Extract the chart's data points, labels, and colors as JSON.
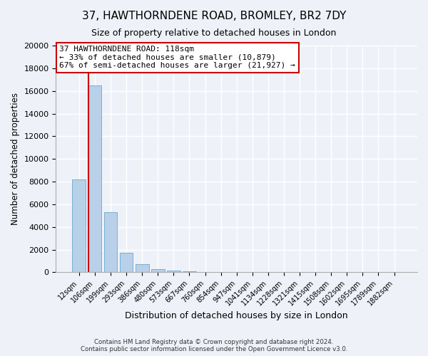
{
  "title": "37, HAWTHORNDENE ROAD, BROMLEY, BR2 7DY",
  "subtitle": "Size of property relative to detached houses in London",
  "xlabel": "Distribution of detached houses by size in London",
  "ylabel": "Number of detached properties",
  "bar_labels": [
    "12sqm",
    "106sqm",
    "199sqm",
    "293sqm",
    "386sqm",
    "480sqm",
    "573sqm",
    "667sqm",
    "760sqm",
    "854sqm",
    "947sqm",
    "1041sqm",
    "1134sqm",
    "1228sqm",
    "1321sqm",
    "1415sqm",
    "1508sqm",
    "1602sqm",
    "1695sqm",
    "1789sqm",
    "1882sqm"
  ],
  "bar_heights": [
    8200,
    16500,
    5300,
    1750,
    750,
    275,
    175,
    100,
    0,
    0,
    0,
    0,
    0,
    0,
    0,
    0,
    0,
    0,
    0,
    0,
    0
  ],
  "bar_color": "#b8d0e8",
  "bar_edge_color": "#7aafd4",
  "property_line_color": "#cc0000",
  "annotation_box_text": "37 HAWTHORNDENE ROAD: 118sqm\n← 33% of detached houses are smaller (10,879)\n67% of semi-detached houses are larger (21,927) →",
  "annotation_box_color": "#ffffff",
  "annotation_box_edge_color": "#cc0000",
  "ylim": [
    0,
    20000
  ],
  "yticks": [
    0,
    2000,
    4000,
    6000,
    8000,
    10000,
    12000,
    14000,
    16000,
    18000,
    20000
  ],
  "footer_line1": "Contains HM Land Registry data © Crown copyright and database right 2024.",
  "footer_line2": "Contains public sector information licensed under the Open Government Licence v3.0.",
  "bg_color": "#eef2f8",
  "plot_bg_color": "#eef2f8",
  "grid_color": "#ffffff"
}
